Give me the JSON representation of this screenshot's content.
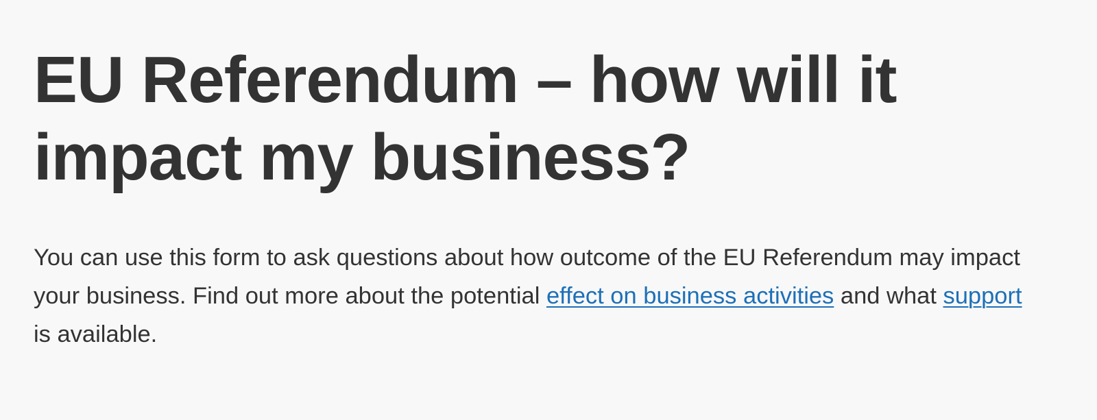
{
  "page": {
    "title": "EU Referendum – how will it impact my business?",
    "intro": {
      "text_1": "You can use this form to ask questions about how outcome of the EU Referendum may impact your business. Find out more about the potential ",
      "link_effect": "effect on business activities",
      "text_2": " and what ",
      "link_support": "support",
      "text_3": " is available."
    }
  },
  "colors": {
    "background": "#f8f8f8",
    "text": "#333333",
    "link": "#1d70b8"
  }
}
